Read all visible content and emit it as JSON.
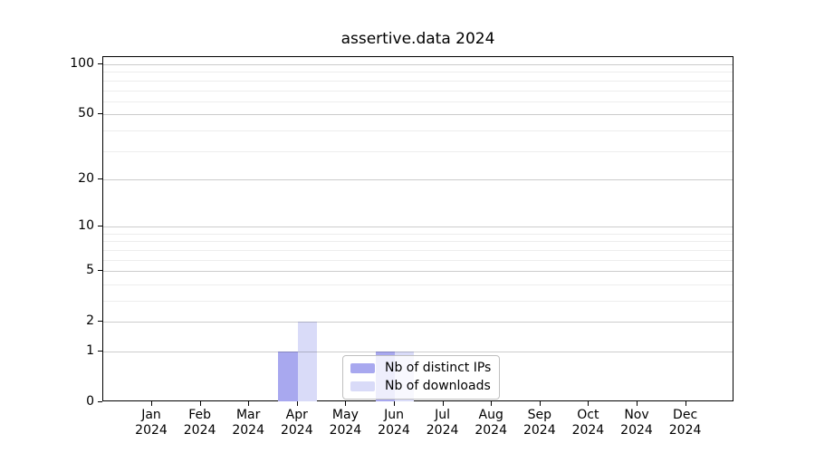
{
  "chart_data": {
    "type": "bar",
    "title": "assertive.data 2024",
    "year_label": "2024",
    "categories": [
      "Jan",
      "Feb",
      "Mar",
      "Apr",
      "May",
      "Jun",
      "Jul",
      "Aug",
      "Sep",
      "Oct",
      "Nov",
      "Dec"
    ],
    "series": [
      {
        "name": "Nb of distinct IPs",
        "color": "#a8a8ef",
        "values": [
          0,
          0,
          0,
          1,
          0,
          1,
          0,
          0,
          0,
          0,
          0,
          0
        ]
      },
      {
        "name": "Nb of downloads",
        "color": "#d9dbf8",
        "values": [
          0,
          0,
          0,
          2,
          0,
          1,
          0,
          0,
          0,
          0,
          0,
          0
        ]
      }
    ],
    "y_scale": "log1p",
    "ylim": [
      0,
      111
    ],
    "ytick_values": [
      0,
      1,
      2,
      5,
      10,
      20,
      50,
      100
    ],
    "minor_gridline_values": [
      3,
      4,
      6,
      7,
      8,
      9,
      30,
      40,
      60,
      70,
      80,
      90
    ],
    "grid": "horizontal",
    "legend_position": "lower-center",
    "colors": {
      "axis": "#000000",
      "grid_major": "#cccccc",
      "grid_minor": "#ececec",
      "legend_border": "#c0c0c0",
      "legend_background": "rgba(255,255,255,0.8)"
    }
  }
}
